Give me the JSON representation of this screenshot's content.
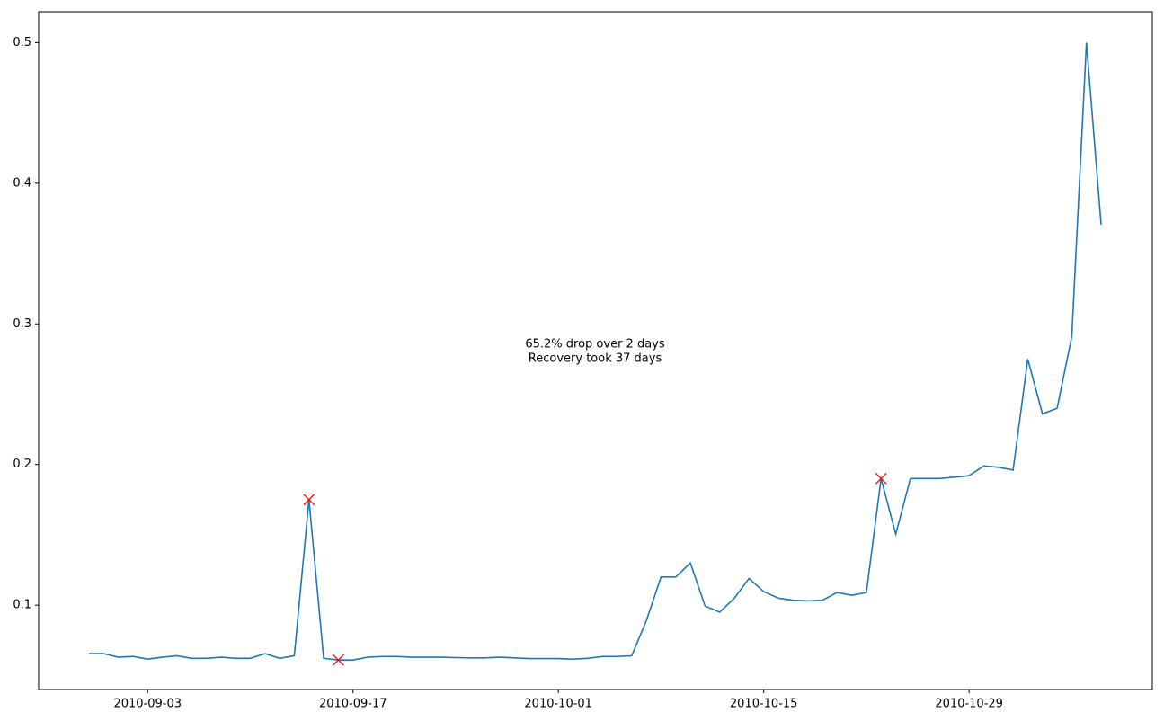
{
  "chart_data": {
    "type": "line",
    "annotation": [
      "65.2% drop over 2 days",
      "Recovery took 37 days"
    ],
    "x": [
      "2010-08-30",
      "2010-08-31",
      "2010-09-01",
      "2010-09-02",
      "2010-09-03",
      "2010-09-04",
      "2010-09-05",
      "2010-09-06",
      "2010-09-07",
      "2010-09-08",
      "2010-09-09",
      "2010-09-10",
      "2010-09-11",
      "2010-09-12",
      "2010-09-13",
      "2010-09-14",
      "2010-09-15",
      "2010-09-16",
      "2010-09-17",
      "2010-09-18",
      "2010-09-19",
      "2010-09-20",
      "2010-09-21",
      "2010-09-22",
      "2010-09-23",
      "2010-09-24",
      "2010-09-25",
      "2010-09-26",
      "2010-09-27",
      "2010-09-28",
      "2010-09-29",
      "2010-09-30",
      "2010-10-01",
      "2010-10-02",
      "2010-10-03",
      "2010-10-04",
      "2010-10-05",
      "2010-10-06",
      "2010-10-07",
      "2010-10-08",
      "2010-10-09",
      "2010-10-10",
      "2010-10-11",
      "2010-10-12",
      "2010-10-13",
      "2010-10-14",
      "2010-10-15",
      "2010-10-16",
      "2010-10-17",
      "2010-10-18",
      "2010-10-19",
      "2010-10-20",
      "2010-10-21",
      "2010-10-22",
      "2010-10-23",
      "2010-10-24",
      "2010-10-25",
      "2010-10-26",
      "2010-10-27",
      "2010-10-28",
      "2010-10-29",
      "2010-10-30",
      "2010-10-31",
      "2010-11-01",
      "2010-11-02",
      "2010-11-03",
      "2010-11-04",
      "2010-11-05",
      "2010-11-06",
      "2010-11-07"
    ],
    "series": [
      {
        "color": "#1f77b4",
        "values": [
          0.0655,
          0.0655,
          0.063,
          0.0635,
          0.0616,
          0.063,
          0.064,
          0.0622,
          0.0622,
          0.063,
          0.0622,
          0.0622,
          0.0655,
          0.0622,
          0.064,
          0.175,
          0.0622,
          0.061,
          0.061,
          0.063,
          0.0635,
          0.0635,
          0.063,
          0.063,
          0.063,
          0.0627,
          0.0625,
          0.0625,
          0.063,
          0.0625,
          0.062,
          0.062,
          0.062,
          0.0616,
          0.0622,
          0.0635,
          0.0635,
          0.064,
          0.089,
          0.12,
          0.12,
          0.13,
          0.0994,
          0.095,
          0.105,
          0.119,
          0.1096,
          0.105,
          0.1035,
          0.103,
          0.1035,
          0.109,
          0.107,
          0.109,
          0.19,
          0.1505,
          0.19,
          0.19,
          0.19,
          0.191,
          0.192,
          0.199,
          0.198,
          0.196,
          0.275,
          0.236,
          0.24,
          0.291,
          0.5,
          0.3706
        ]
      }
    ],
    "markers": {
      "color": "red",
      "x": [
        "2010-09-14",
        "2010-09-16",
        "2010-10-23"
      ],
      "values": [
        0.175,
        0.061,
        0.19
      ]
    },
    "xlim": [
      "2010-08-27",
      "2010-11-10"
    ],
    "xticks": [
      "2010-09-03",
      "2010-09-17",
      "2010-10-01",
      "2010-10-15",
      "2010-10-29"
    ],
    "ylim": [
      0.04,
      0.522
    ],
    "yticks": [
      0.1,
      0.2,
      0.3,
      0.4,
      0.5
    ]
  }
}
